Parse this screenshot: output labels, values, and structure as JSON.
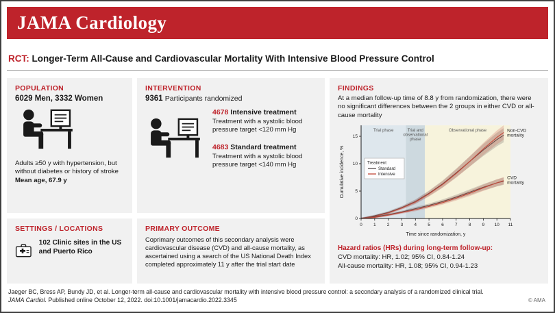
{
  "colors": {
    "jama_red": "#BE232B",
    "panel_bg": "#F1F1F1",
    "pictogram": "#1A1A1A"
  },
  "banner": {
    "title": "JAMA Cardiology"
  },
  "headline": {
    "tag": "RCT:",
    "title": "Longer-Term All-Cause and Cardiovascular Mortality With Intensive Blood Pressure Control"
  },
  "population": {
    "heading": "POPULATION",
    "count_line": "6029 Men, 3332 Women",
    "description": "Adults ≥50 y with hypertension, but without diabetes or history of stroke",
    "mean_age": "Mean age, 67.9 y"
  },
  "intervention": {
    "heading": "INTERVENTION",
    "count": "9361",
    "count_label": "Participants randomized",
    "groups": [
      {
        "count": "4678",
        "label": "Intensive treatment",
        "description": "Treatment with a systolic blood pressure target <120 mm Hg"
      },
      {
        "count": "4683",
        "label": "Standard treatment",
        "description": "Treatment with a systolic blood pressure target <140 mm Hg"
      }
    ]
  },
  "settings": {
    "heading": "SETTINGS / LOCATIONS",
    "description": "102 Clinic sites in the US and Puerto Rico"
  },
  "primary_outcome": {
    "heading": "PRIMARY OUTCOME",
    "description": "Coprimary outcomes of this secondary analysis were cardiovascular disease (CVD) and all-cause mortality, as ascertained using a search of the US National Death Index completed approximately 11 y after the trial start date"
  },
  "findings": {
    "heading": "FINDINGS",
    "summary": "At a median follow-up time of 8.8 y from randomization, there were no significant differences between the 2 groups in either CVD or all-cause mortality",
    "hazard_heading": "Hazard ratios (HRs) during long-term follow-up:",
    "hazard_lines": [
      "CVD mortality: HR, 1.02; 95% CI, 0.84-1.24",
      "All-cause mortality: HR, 1.08; 95% CI, 0.94-1.23"
    ]
  },
  "chart_data": {
    "type": "line",
    "xlabel": "Time since randomization, y",
    "ylabel": "Cumulative incidence, %",
    "xlim": [
      0,
      11
    ],
    "ylim": [
      0,
      17
    ],
    "xticks": [
      0,
      1,
      2,
      3,
      4,
      5,
      6,
      7,
      8,
      9,
      10,
      11
    ],
    "yticks": [
      0,
      5,
      10,
      15
    ],
    "phases": [
      {
        "label": "Trial phase",
        "lines": [
          "Trial phase"
        ],
        "from": 0,
        "to": 3.3,
        "color": "#DEE7ED"
      },
      {
        "label": "Trial and observational phase",
        "lines": [
          "Trial and",
          "observational",
          "phase"
        ],
        "from": 3.3,
        "to": 4.7,
        "color": "#CDD9DF"
      },
      {
        "label": "Observational phase",
        "lines": [
          "Observational phase"
        ],
        "from": 4.7,
        "to": 11,
        "color": "#F7F3DC"
      }
    ],
    "legend": {
      "title": "Treatment",
      "entries": [
        "Standard",
        "Intensive"
      ]
    },
    "series": [
      {
        "name": "Standard",
        "outcome": "Non-CVD mortality",
        "color": "#524A4A",
        "x": [
          0,
          1,
          2,
          3,
          4,
          5,
          6,
          7,
          8,
          9,
          10,
          10.5
        ],
        "y": [
          0,
          0.5,
          1.1,
          2.0,
          3.1,
          4.6,
          6.3,
          8.3,
          10.4,
          12.5,
          14.4,
          15.2
        ]
      },
      {
        "name": "Intensive",
        "outcome": "Non-CVD mortality",
        "color": "#C34A3A",
        "x": [
          0,
          1,
          2,
          3,
          4,
          5,
          6,
          7,
          8,
          9,
          10,
          10.5
        ],
        "y": [
          0,
          0.4,
          1.0,
          1.9,
          3.0,
          4.5,
          6.2,
          8.2,
          10.4,
          12.7,
          14.8,
          15.7
        ]
      },
      {
        "name": "Standard",
        "outcome": "CVD mortality",
        "color": "#524A4A",
        "x": [
          0,
          1,
          2,
          3,
          4,
          5,
          6,
          7,
          8,
          9,
          10,
          10.5
        ],
        "y": [
          0,
          0.3,
          0.7,
          1.2,
          1.8,
          2.4,
          3.1,
          3.9,
          4.8,
          5.7,
          6.5,
          6.8
        ]
      },
      {
        "name": "Intensive",
        "outcome": "CVD mortality",
        "color": "#C34A3A",
        "x": [
          0,
          1,
          2,
          3,
          4,
          5,
          6,
          7,
          8,
          9,
          10,
          10.5
        ],
        "y": [
          0,
          0.2,
          0.6,
          1.1,
          1.6,
          2.2,
          2.9,
          3.7,
          4.6,
          5.6,
          6.5,
          6.9
        ]
      }
    ],
    "annotations": [
      {
        "text": "Non-CVD mortality",
        "x": 10.6,
        "y": 15.8
      },
      {
        "text": "CVD mortality",
        "x": 10.6,
        "y": 7.2
      }
    ]
  },
  "footer": {
    "line1": "Jaeger BC, Bress AP, Bundy JD, et al. Longer-term all-cause and cardiovascular mortality with intensive blood pressure control: a secondary analysis of a randomized clinical trial.",
    "journal": "JAMA Cardiol.",
    "line2": "Published online October 12, 2022. doi:10.1001/jamacardio.2022.3345",
    "copyright": "© AMA"
  }
}
